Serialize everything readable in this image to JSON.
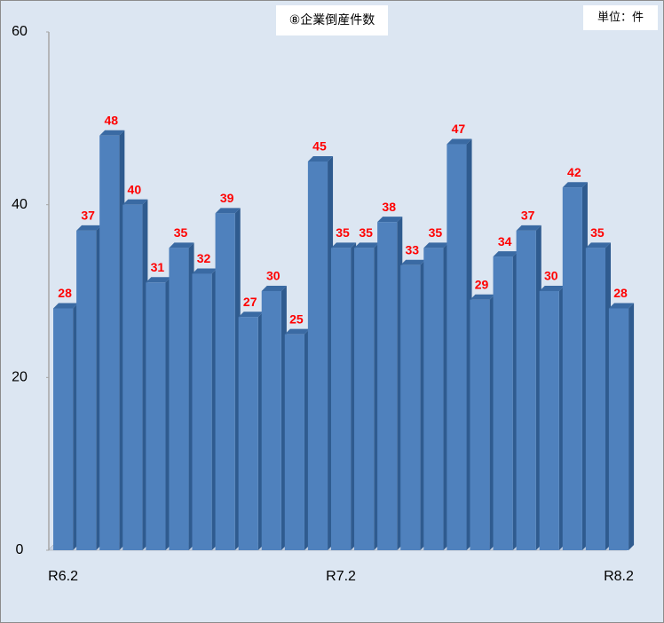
{
  "chart_data": {
    "type": "bar",
    "title": "⑧企業倒産件数",
    "unit_label": "単位：件",
    "categories": [
      "R6.2",
      null,
      null,
      null,
      null,
      null,
      null,
      null,
      null,
      null,
      null,
      null,
      "R7.2",
      null,
      null,
      null,
      null,
      null,
      null,
      null,
      null,
      null,
      null,
      null,
      "R8.2"
    ],
    "values": [
      28,
      37,
      48,
      40,
      31,
      35,
      32,
      39,
      27,
      30,
      25,
      45,
      35,
      35,
      38,
      33,
      35,
      47,
      29,
      34,
      37,
      30,
      42,
      35,
      28
    ],
    "color": "#4f81bd",
    "ylim": [
      0,
      60
    ],
    "yticks": [
      0,
      20,
      40,
      60
    ],
    "grid": false
  }
}
